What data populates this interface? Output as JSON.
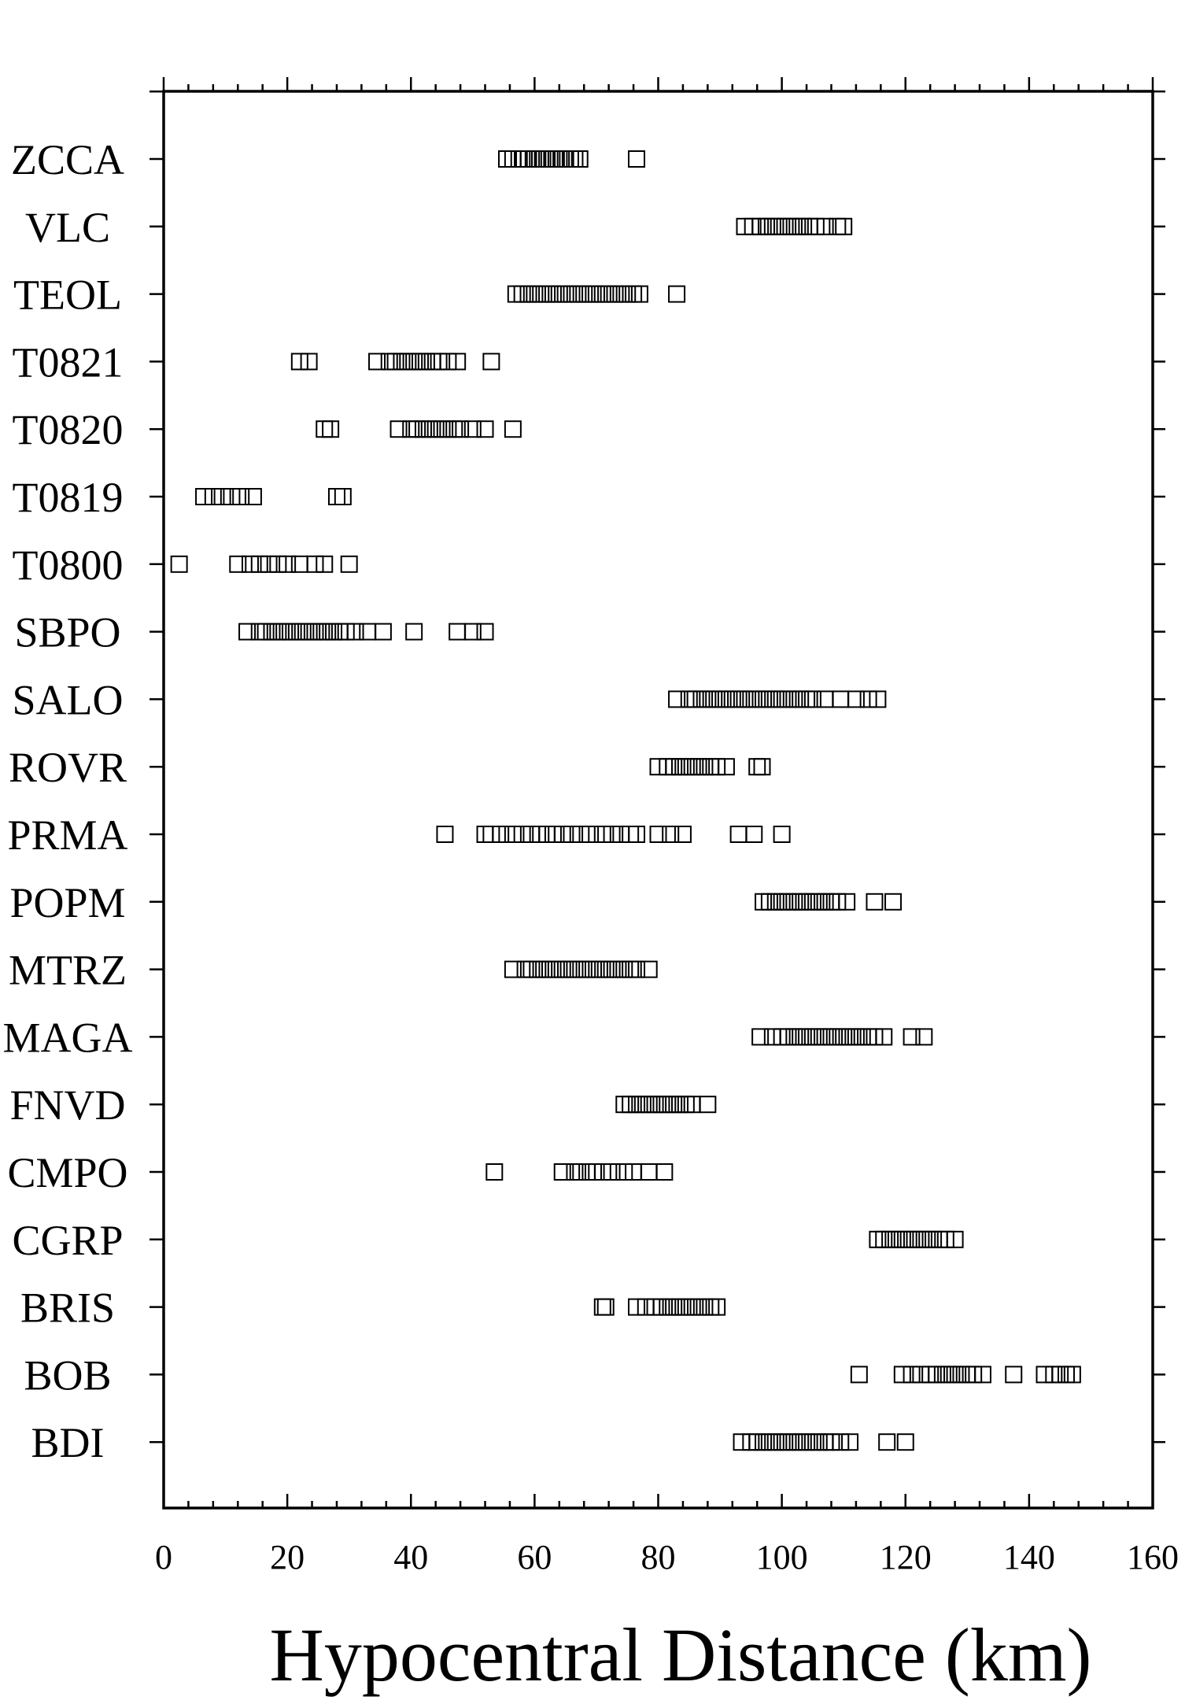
{
  "chart_data": {
    "type": "scatter",
    "title": "",
    "xlabel": "Hypocentral Distance (km)",
    "ylabel": "",
    "xlim": [
      0,
      160
    ],
    "x_ticks": [
      0,
      20,
      40,
      60,
      80,
      100,
      120,
      140,
      160
    ],
    "x_tick_labels": [
      "0",
      "20",
      "40",
      "60",
      "80",
      "100",
      "120",
      "140",
      "160"
    ],
    "grid": false,
    "legend": "none",
    "marker": "open-square",
    "stations": [
      {
        "label": "ZCCA",
        "x": [
          55.5,
          56.5,
          57.5,
          58.3,
          59.0,
          59.8,
          60.5,
          61.3,
          62.0,
          62.8,
          63.5,
          64.3,
          65.0,
          65.8,
          66.5,
          67.3,
          76.5
        ]
      },
      {
        "label": "VLC",
        "x": [
          94.0,
          95.3,
          96.5,
          97.5,
          98.5,
          99.5,
          100.5,
          101.5,
          102.5,
          103.5,
          104.5,
          105.5,
          107.0,
          109.0,
          110.0
        ]
      },
      {
        "label": "TEOL",
        "x": [
          57.0,
          58.0,
          59.0,
          60.0,
          61.0,
          62.0,
          63.0,
          64.0,
          65.0,
          66.0,
          67.0,
          68.0,
          69.0,
          70.0,
          71.0,
          72.0,
          73.0,
          74.0,
          75.0,
          76.0,
          77.0,
          83.0
        ]
      },
      {
        "label": "T0821",
        "x": [
          22.0,
          23.5,
          34.5,
          36.5,
          37.5,
          38.5,
          39.5,
          40.5,
          41.5,
          42.5,
          43.5,
          44.5,
          46.0,
          47.5,
          53.0
        ]
      },
      {
        "label": "T0820",
        "x": [
          26.0,
          27.0,
          38.0,
          40.0,
          41.0,
          42.0,
          43.0,
          44.0,
          45.0,
          46.0,
          47.0,
          48.0,
          50.0,
          52.0,
          56.5
        ]
      },
      {
        "label": "T0819",
        "x": [
          6.5,
          8.0,
          9.5,
          11.0,
          12.5,
          14.5,
          28.0,
          29.0
        ]
      },
      {
        "label": "T0800",
        "x": [
          2.5,
          12.0,
          14.0,
          15.5,
          17.0,
          18.5,
          20.0,
          22.0,
          24.5,
          26.0,
          30.0
        ]
      },
      {
        "label": "SBPO",
        "x": [
          13.5,
          15.5,
          16.5,
          17.5,
          18.5,
          19.5,
          20.5,
          21.5,
          22.5,
          23.5,
          24.5,
          25.5,
          26.5,
          27.5,
          28.5,
          29.5,
          31.0,
          33.0,
          35.5,
          40.5,
          47.5,
          50.0,
          52.0
        ]
      },
      {
        "label": "SALO",
        "x": [
          83.0,
          85.0,
          86.0,
          87.0,
          88.0,
          89.0,
          90.0,
          91.0,
          92.0,
          93.0,
          94.0,
          95.0,
          96.0,
          97.0,
          98.0,
          99.0,
          100.0,
          101.0,
          102.0,
          103.0,
          104.0,
          105.0,
          107.0,
          109.5,
          112.0,
          114.0,
          115.5
        ]
      },
      {
        "label": "ROVR",
        "x": [
          80.0,
          81.5,
          82.5,
          83.5,
          84.5,
          85.5,
          86.5,
          87.5,
          88.5,
          89.5,
          91.0,
          96.0,
          96.8
        ]
      },
      {
        "label": "PRMA",
        "x": [
          45.5,
          52.0,
          53.0,
          54.5,
          56.5,
          58.0,
          59.5,
          61.0,
          62.0,
          63.0,
          64.5,
          66.0,
          67.5,
          69.0,
          71.0,
          72.5,
          74.0,
          75.5,
          76.5,
          80.0,
          82.0,
          84.0,
          93.0,
          95.5,
          100.0
        ]
      },
      {
        "label": "POPM",
        "x": [
          97.0,
          98.0,
          99.0,
          100.0,
          101.0,
          102.0,
          103.0,
          104.0,
          105.0,
          106.0,
          107.0,
          108.0,
          109.0,
          110.5,
          115.0,
          118.0
        ]
      },
      {
        "label": "MTRZ",
        "x": [
          56.5,
          58.5,
          59.5,
          60.5,
          61.5,
          62.5,
          63.5,
          64.5,
          65.5,
          66.5,
          67.5,
          68.5,
          69.5,
          70.5,
          71.5,
          72.5,
          73.5,
          74.5,
          75.5,
          76.5,
          78.5
        ]
      },
      {
        "label": "MAGA",
        "x": [
          96.5,
          98.5,
          100.0,
          101.0,
          102.0,
          103.0,
          104.0,
          105.0,
          106.0,
          107.0,
          108.0,
          109.0,
          110.0,
          111.0,
          112.0,
          113.0,
          114.0,
          115.0,
          116.5,
          121.0,
          123.0
        ]
      },
      {
        "label": "FNVD",
        "x": [
          74.5,
          75.5,
          76.5,
          77.5,
          78.5,
          79.5,
          80.5,
          81.5,
          82.5,
          83.5,
          84.5,
          85.5,
          88.0
        ]
      },
      {
        "label": "CMPO",
        "x": [
          53.5,
          64.5,
          66.5,
          67.5,
          68.5,
          69.5,
          71.0,
          72.5,
          74.5,
          76.0,
          78.5,
          81.0
        ]
      },
      {
        "label": "CGRP",
        "x": [
          115.5,
          116.5,
          117.5,
          118.5,
          119.5,
          120.5,
          121.5,
          122.5,
          123.5,
          124.5,
          125.5,
          126.5,
          128.0
        ]
      },
      {
        "label": "BRIS",
        "x": [
          71.0,
          71.5,
          76.5,
          78.0,
          79.5,
          80.5,
          81.5,
          82.5,
          83.5,
          84.5,
          85.5,
          86.5,
          87.5,
          88.5,
          89.5
        ]
      },
      {
        "label": "BOB",
        "x": [
          112.5,
          119.5,
          121.0,
          122.5,
          124.0,
          125.0,
          126.0,
          127.0,
          128.0,
          129.0,
          130.0,
          131.0,
          132.5,
          137.5,
          142.5,
          144.0,
          145.0,
          146.0,
          147.0
        ]
      },
      {
        "label": "BDI",
        "x": [
          93.5,
          95.0,
          96.0,
          97.0,
          98.0,
          99.0,
          100.0,
          101.0,
          102.0,
          103.0,
          104.0,
          105.0,
          106.0,
          107.0,
          108.0,
          109.5,
          111.0,
          117.0,
          120.0
        ]
      }
    ]
  }
}
